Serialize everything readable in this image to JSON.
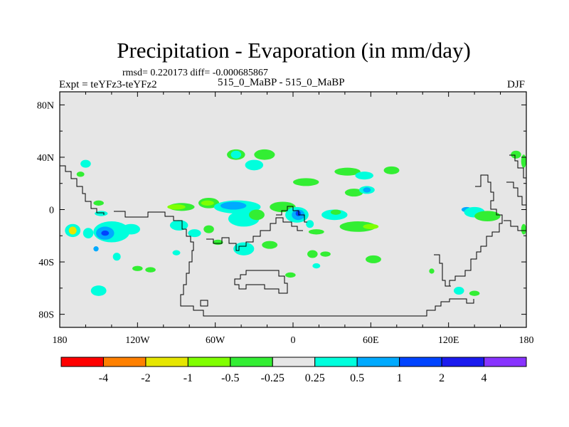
{
  "title": "Precipitation - Evaporation (in mm/day)",
  "stats_line": "rmsd= 0.220173 diff= -0.000685867",
  "left_label": "Expt = teYFz3-teYFz2",
  "center_label": "515_0_MaBP - 515_0_MaBP",
  "right_label": "DJF",
  "chart_data": {
    "type": "heatmap",
    "title": "Precipitation - Evaporation (in mm/day)",
    "units": "mm/day",
    "season": "DJF",
    "experiment": "teYFz3-teYFz2",
    "comparison": "515_0_MaBP - 515_0_MaBP",
    "rmsd": 0.220173,
    "diff": -0.000685867,
    "x_range": [
      -180,
      180
    ],
    "y_range": [
      -90,
      90
    ],
    "x_ticks": [
      {
        "value": -180,
        "label": "180"
      },
      {
        "value": -120,
        "label": "120W"
      },
      {
        "value": -60,
        "label": "60W"
      },
      {
        "value": 0,
        "label": "0"
      },
      {
        "value": 60,
        "label": "60E"
      },
      {
        "value": 120,
        "label": "120E"
      },
      {
        "value": 180,
        "label": "180"
      }
    ],
    "y_ticks": [
      {
        "value": 80,
        "label": "80N"
      },
      {
        "value": 40,
        "label": "40N"
      },
      {
        "value": 0,
        "label": "0"
      },
      {
        "value": -40,
        "label": "40S"
      },
      {
        "value": -80,
        "label": "80S"
      }
    ],
    "colorbar": {
      "colors": [
        "#ff0000",
        "#ff8000",
        "#e6e600",
        "#80ff00",
        "#33ee33",
        "#e6e6e6",
        "#00ffdd",
        "#00aaff",
        "#0044ff",
        "#1a1aee",
        "#8833ff"
      ],
      "labels": [
        "-4",
        "-2",
        "-1",
        "-0.5",
        "-0.25",
        "0.25",
        "0.5",
        "1",
        "2",
        "4"
      ]
    },
    "background_color": "#e6e6e6",
    "anomalies": [
      {
        "lon": -160,
        "lat": 35,
        "rx": 4,
        "ry": 3,
        "level": 0.5
      },
      {
        "lon": -164,
        "lat": 27,
        "rx": 3,
        "ry": 2,
        "level": -0.25
      },
      {
        "lon": -150,
        "lat": 5,
        "rx": 4,
        "ry": 2,
        "level": -0.25
      },
      {
        "lon": -148,
        "lat": -3,
        "rx": 5,
        "ry": 2,
        "level": 0.5
      },
      {
        "lon": -140,
        "lat": -17,
        "rx": 14,
        "ry": 8,
        "level": 0.5
      },
      {
        "lon": -145,
        "lat": -18,
        "rx": 7,
        "ry": 5,
        "level": 1
      },
      {
        "lon": -145,
        "lat": -18,
        "rx": 3,
        "ry": 2,
        "level": 2
      },
      {
        "lon": -125,
        "lat": -15,
        "rx": 7,
        "ry": 4,
        "level": 0.5
      },
      {
        "lon": -170,
        "lat": -16,
        "rx": 6,
        "ry": 5,
        "level": 0.5
      },
      {
        "lon": -170,
        "lat": -16,
        "rx": 3,
        "ry": 3,
        "level": -1
      },
      {
        "lon": -158,
        "lat": -18,
        "rx": 4,
        "ry": 4,
        "level": 0.5
      },
      {
        "lon": -152,
        "lat": -30,
        "rx": 2,
        "ry": 2,
        "level": 1
      },
      {
        "lon": -136,
        "lat": -36,
        "rx": 3,
        "ry": 3,
        "level": 0.5
      },
      {
        "lon": -120,
        "lat": -45,
        "rx": 4,
        "ry": 2,
        "level": -0.25
      },
      {
        "lon": -150,
        "lat": -62,
        "rx": 6,
        "ry": 4,
        "level": 0.5
      },
      {
        "lon": -86,
        "lat": 2,
        "rx": 10,
        "ry": 3,
        "level": -0.25
      },
      {
        "lon": -90,
        "lat": 2,
        "rx": 7,
        "ry": 2,
        "level": -0.5
      },
      {
        "lon": -65,
        "lat": 5,
        "rx": 8,
        "ry": 4,
        "level": -0.25
      },
      {
        "lon": -66,
        "lat": 5,
        "rx": 5,
        "ry": 2,
        "level": -0.5
      },
      {
        "lon": -88,
        "lat": -12,
        "rx": 7,
        "ry": 4,
        "level": 0.5
      },
      {
        "lon": -76,
        "lat": -18,
        "rx": 5,
        "ry": 3,
        "level": 0.5
      },
      {
        "lon": -65,
        "lat": -15,
        "rx": 4,
        "ry": 3,
        "level": -0.25
      },
      {
        "lon": -90,
        "lat": -33,
        "rx": 3,
        "ry": 2,
        "level": 0.5
      },
      {
        "lon": -110,
        "lat": -46,
        "rx": 4,
        "ry": 2,
        "level": -0.25
      },
      {
        "lon": -58,
        "lat": -25,
        "rx": 4,
        "ry": 2,
        "level": -0.25
      },
      {
        "lon": -44,
        "lat": 42,
        "rx": 7,
        "ry": 4,
        "level": -0.25
      },
      {
        "lon": -44,
        "lat": 42,
        "rx": 4,
        "ry": 3,
        "level": 0.5
      },
      {
        "lon": -22,
        "lat": 42,
        "rx": 8,
        "ry": 4,
        "level": -0.25
      },
      {
        "lon": -30,
        "lat": 34,
        "rx": 7,
        "ry": 4,
        "level": 0.5
      },
      {
        "lon": -43,
        "lat": 2,
        "rx": 18,
        "ry": 5,
        "level": 0.5
      },
      {
        "lon": -46,
        "lat": 3,
        "rx": 10,
        "ry": 3,
        "level": 1
      },
      {
        "lon": -38,
        "lat": -7,
        "rx": 12,
        "ry": 6,
        "level": 0.5
      },
      {
        "lon": -28,
        "lat": -4,
        "rx": 6,
        "ry": 4,
        "level": -0.25
      },
      {
        "lon": -8,
        "lat": 2,
        "rx": 10,
        "ry": 4,
        "level": -0.25
      },
      {
        "lon": 3,
        "lat": -4,
        "rx": 9,
        "ry": 6,
        "level": 0.5
      },
      {
        "lon": 4,
        "lat": -4,
        "rx": 5,
        "ry": 4,
        "level": 1
      },
      {
        "lon": 4,
        "lat": -3,
        "rx": 2,
        "ry": 2,
        "level": 2
      },
      {
        "lon": 13,
        "lat": -11,
        "rx": 3,
        "ry": 3,
        "level": 0.5
      },
      {
        "lon": -38,
        "lat": -30,
        "rx": 8,
        "ry": 5,
        "level": 0.5
      },
      {
        "lon": -18,
        "lat": -27,
        "rx": 6,
        "ry": 3,
        "level": -0.25
      },
      {
        "lon": -2,
        "lat": -50,
        "rx": 4,
        "ry": 2,
        "level": -0.25
      },
      {
        "lon": 15,
        "lat": -34,
        "rx": 4,
        "ry": 3,
        "level": -0.25
      },
      {
        "lon": 18,
        "lat": -43,
        "rx": 3,
        "ry": 2,
        "level": 0.5
      },
      {
        "lon": 10,
        "lat": 21,
        "rx": 10,
        "ry": 3,
        "level": -0.25
      },
      {
        "lon": 42,
        "lat": 29,
        "rx": 10,
        "ry": 3,
        "level": -0.25
      },
      {
        "lon": 55,
        "lat": 26,
        "rx": 7,
        "ry": 3,
        "level": 0.5
      },
      {
        "lon": 76,
        "lat": 30,
        "rx": 6,
        "ry": 3,
        "level": -0.25
      },
      {
        "lon": 47,
        "lat": 13,
        "rx": 7,
        "ry": 3,
        "level": -0.25
      },
      {
        "lon": 57,
        "lat": 15,
        "rx": 6,
        "ry": 3,
        "level": 0.5
      },
      {
        "lon": 57,
        "lat": 15,
        "rx": 3,
        "ry": 2,
        "level": 1
      },
      {
        "lon": 32,
        "lat": -4,
        "rx": 10,
        "ry": 4,
        "level": 0.5
      },
      {
        "lon": 33,
        "lat": -2,
        "rx": 4,
        "ry": 2,
        "level": -0.25
      },
      {
        "lon": 50,
        "lat": -13,
        "rx": 14,
        "ry": 4,
        "level": -0.25
      },
      {
        "lon": 60,
        "lat": -13,
        "rx": 6,
        "ry": 2,
        "level": -0.5
      },
      {
        "lon": 18,
        "lat": -17,
        "rx": 6,
        "ry": 2,
        "level": -0.25
      },
      {
        "lon": 62,
        "lat": -38,
        "rx": 6,
        "ry": 3,
        "level": -0.25
      },
      {
        "lon": 25,
        "lat": -34,
        "rx": 4,
        "ry": 2,
        "level": -0.25
      },
      {
        "lon": 134,
        "lat": 0,
        "rx": 4,
        "ry": 2,
        "level": 1
      },
      {
        "lon": 140,
        "lat": -2,
        "rx": 8,
        "ry": 4,
        "level": 0.5
      },
      {
        "lon": 150,
        "lat": -5,
        "rx": 10,
        "ry": 4,
        "level": -0.25
      },
      {
        "lon": 172,
        "lat": 42,
        "rx": 4,
        "ry": 3,
        "level": -0.25
      },
      {
        "lon": 178,
        "lat": 37,
        "rx": 2,
        "ry": 5,
        "level": -0.25
      },
      {
        "lon": 178,
        "lat": -15,
        "rx": 2,
        "ry": 4,
        "level": -0.25
      },
      {
        "lon": 107,
        "lat": -47,
        "rx": 2,
        "ry": 2,
        "level": -0.25
      },
      {
        "lon": 128,
        "lat": -62,
        "rx": 4,
        "ry": 3,
        "level": 0.5
      },
      {
        "lon": 140,
        "lat": -64,
        "rx": 4,
        "ry": 2,
        "level": -0.25
      }
    ]
  }
}
